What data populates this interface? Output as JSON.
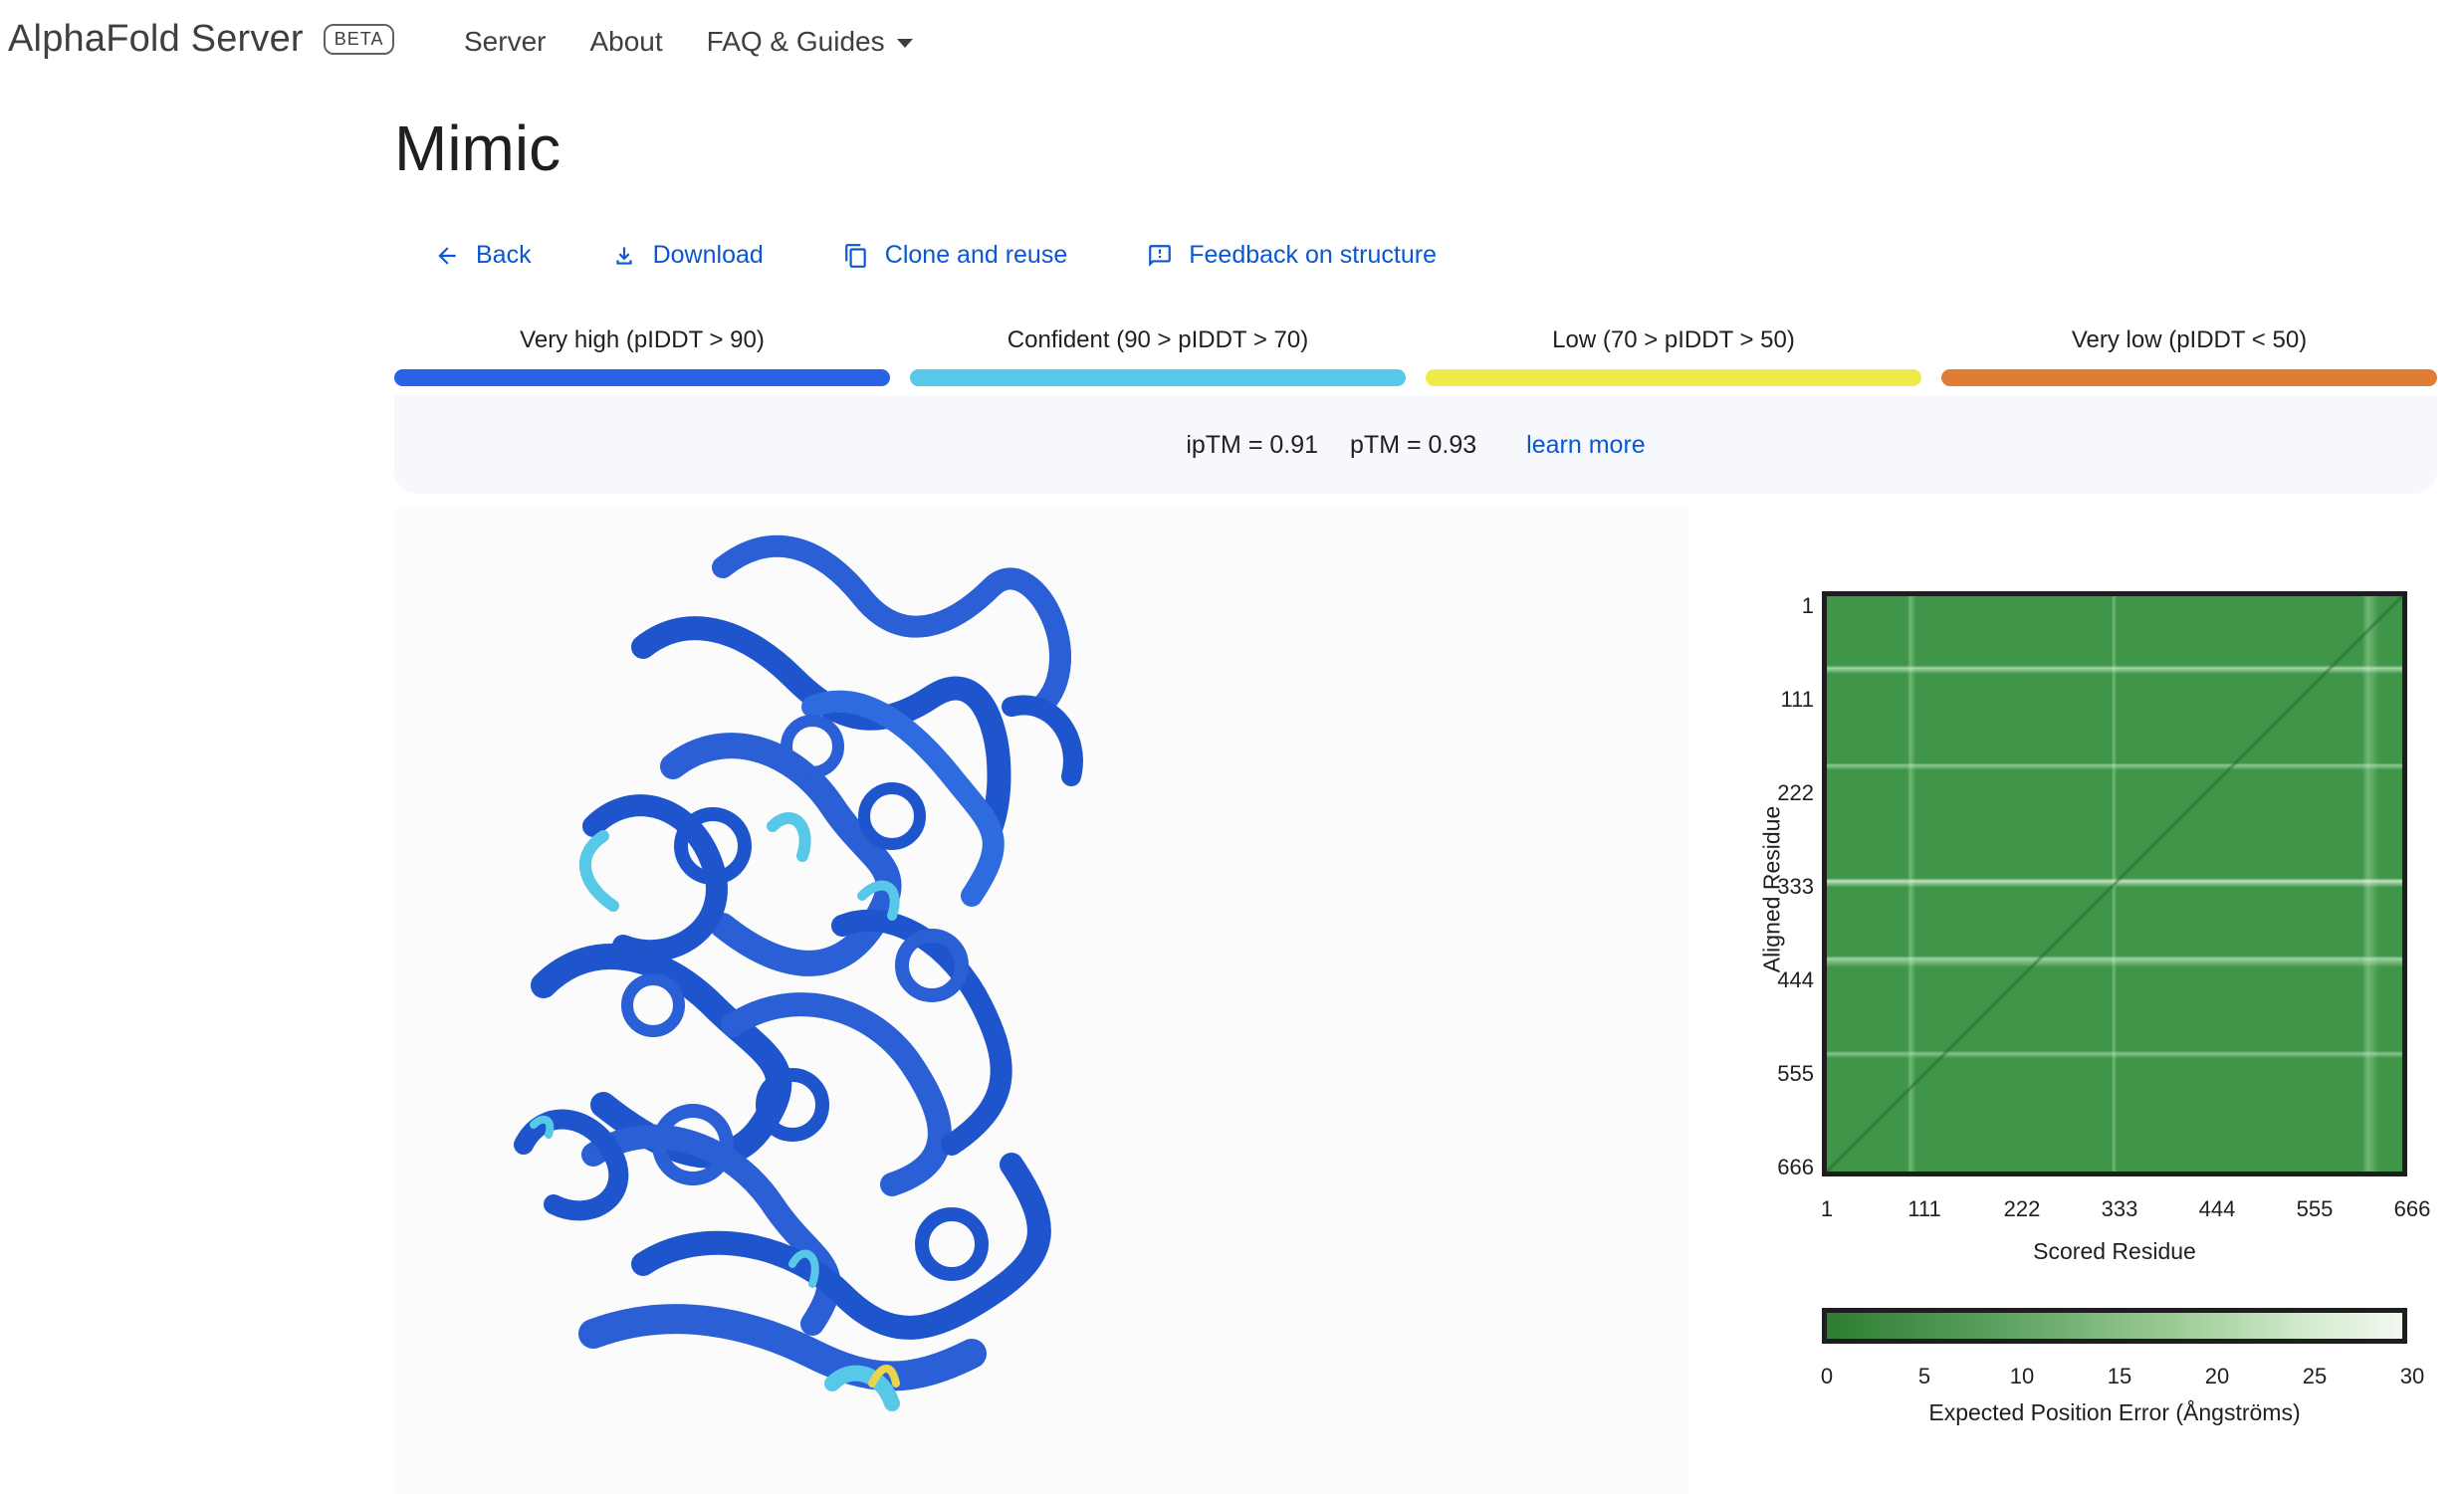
{
  "header": {
    "brand": "AlphaFold Server",
    "badge": "BETA",
    "nav": [
      "Server",
      "About",
      "FAQ & Guides"
    ]
  },
  "page": {
    "title": "Mimic"
  },
  "actions": {
    "back": "Back",
    "download": "Download",
    "clone": "Clone and reuse",
    "feedback": "Feedback on structure"
  },
  "legend": [
    {
      "label": "Very high (pIDDT > 90)",
      "color": "#2962e6"
    },
    {
      "label": "Confident (90 > pIDDT > 70)",
      "color": "#58c8e8"
    },
    {
      "label": "Low (70 > pIDDT > 50)",
      "color": "#eeea4a"
    },
    {
      "label": "Very low (pIDDT < 50)",
      "color": "#e07d34"
    }
  ],
  "scores": {
    "iptm": "ipTM = 0.91",
    "ptm": "pTM = 0.93",
    "learn_more": "learn more"
  },
  "pae": {
    "ticks": [
      "1",
      "111",
      "222",
      "333",
      "444",
      "555",
      "666"
    ],
    "ylabel": "Aligned Residue",
    "xlabel": "Scored Residue",
    "colorbar_ticks": [
      "0",
      "5",
      "10",
      "15",
      "20",
      "25",
      "30"
    ],
    "colorbar_label": "Expected Position Error (Ångströms)"
  },
  "icons": [
    "arrow-left-icon",
    "download-icon",
    "copy-icon",
    "feedback-icon",
    "chevron-down-icon"
  ]
}
